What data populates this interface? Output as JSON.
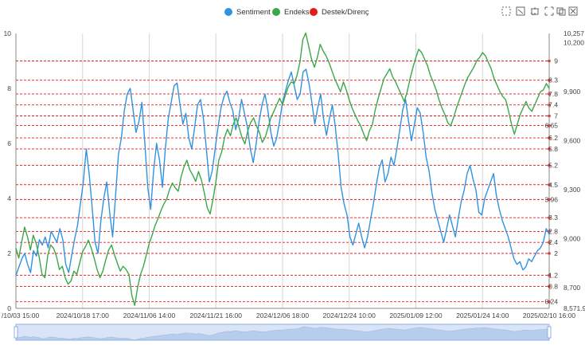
{
  "legend": [
    {
      "name": "Sentiment",
      "color": "#2f93e0"
    },
    {
      "name": "Endeks",
      "color": "#3aa84a"
    },
    {
      "name": "Destek/Direnç",
      "color": "#e41b1b"
    }
  ],
  "toolbox": [
    "zoom-select-icon",
    "zoom-reset-icon",
    "lasso-icon",
    "restore-icon",
    "save-icon",
    "fullscreen-icon"
  ],
  "chart_data": {
    "type": "line",
    "x_tick_labels": [
      "/10/03 15:00",
      "2024/10/18 17:00",
      "2024/11/06 14:00",
      "2024/11/21 16:00",
      "2024/12/06 18:00",
      "2024/12/24 10:00",
      "2025/01/09 12:00",
      "2025/01/24 14:00",
      "2025/02/10 16:00"
    ],
    "y_left": {
      "min": 0,
      "max": 10,
      "ticks": [
        "0",
        "2",
        "4",
        "6",
        "8",
        "10"
      ]
    },
    "y_right": {
      "ticks": [
        "8,571.9",
        "8,700",
        "9,000",
        "9,300",
        "9,600",
        "9,900",
        "10,200",
        "10,257"
      ],
      "range": [
        8571.9,
        10257
      ]
    },
    "support_resistance_levels": [
      0.24,
      0.8,
      1.2,
      2,
      2.4,
      2.8,
      3.3,
      3.96,
      4.5,
      5.2,
      5.8,
      6.2,
      6.65,
      7,
      7.4,
      7.8,
      8.3,
      9
    ],
    "support_resistance_labels": [
      "0.24",
      "0.8",
      "1.2",
      "2",
      "2.4",
      "2.8",
      "3.3",
      "3.96",
      "4.5",
      "5.2",
      "5.8",
      "6.2",
      "6.65",
      "7",
      "7.4",
      "7.8",
      "8.3",
      "9"
    ],
    "series": [
      {
        "name": "Sentiment",
        "axis": "left",
        "color": "#2f93e0",
        "values": [
          1.2,
          1.5,
          1.8,
          2.0,
          1.6,
          1.3,
          2.1,
          1.9,
          2.5,
          2.3,
          2.6,
          2.2,
          2.8,
          2.6,
          2.4,
          2.9,
          2.5,
          1.6,
          1.3,
          1.9,
          2.5,
          3.0,
          3.8,
          4.6,
          5.8,
          4.9,
          3.7,
          2.4,
          2.0,
          3.2,
          4.0,
          4.6,
          3.5,
          2.6,
          4.1,
          5.6,
          6.2,
          7.2,
          7.8,
          8.0,
          7.2,
          6.4,
          6.8,
          7.5,
          6.0,
          4.4,
          3.6,
          5.0,
          6.0,
          5.4,
          4.4,
          5.8,
          6.9,
          7.5,
          8.1,
          8.2,
          7.4,
          6.7,
          7.1,
          6.2,
          5.8,
          6.6,
          7.4,
          7.6,
          6.9,
          5.8,
          4.6,
          5.0,
          5.8,
          6.6,
          7.3,
          7.7,
          7.9,
          7.5,
          7.2,
          6.5,
          6.9,
          7.6,
          7.1,
          6.6,
          5.8,
          5.3,
          6.0,
          6.8,
          7.4,
          7.8,
          7.2,
          6.4,
          5.9,
          6.2,
          6.8,
          7.5,
          7.9,
          8.3,
          8.6,
          8.1,
          7.6,
          7.8,
          8.6,
          8.7,
          8.2,
          7.5,
          6.7,
          7.3,
          7.8,
          6.9,
          6.3,
          6.9,
          7.4,
          6.6,
          5.6,
          4.4,
          3.8,
          3.4,
          2.6,
          2.3,
          2.7,
          3.1,
          2.6,
          2.2,
          2.6,
          3.2,
          3.8,
          4.5,
          5.1,
          5.4,
          4.6,
          4.9,
          5.5,
          5.2,
          5.8,
          6.5,
          7.2,
          7.6,
          6.8,
          6.1,
          6.7,
          7.3,
          7.1,
          6.4,
          5.5,
          5.0,
          4.2,
          3.6,
          3.2,
          2.8,
          2.4,
          2.9,
          3.4,
          3.0,
          2.6,
          3.3,
          3.9,
          4.3,
          4.9,
          5.2,
          4.7,
          4.3,
          3.5,
          3.4,
          4.0,
          4.3,
          4.6,
          4.9,
          4.1,
          3.6,
          3.2,
          2.9,
          2.6,
          2.2,
          1.8,
          1.6,
          1.7,
          1.4,
          1.5,
          1.8,
          1.7,
          1.9,
          2.1,
          2.2,
          2.4,
          2.9,
          2.7
        ]
      },
      {
        "name": "Endeks",
        "axis": "right",
        "color": "#3aa84a",
        "values": [
          8940,
          8880,
          8980,
          9070,
          9010,
          8930,
          9020,
          8970,
          8890,
          8780,
          8760,
          8900,
          8960,
          8940,
          8890,
          8810,
          8830,
          8760,
          8720,
          8740,
          8800,
          8780,
          8850,
          8920,
          8950,
          8990,
          8940,
          8880,
          8810,
          8760,
          8800,
          8870,
          8930,
          8960,
          8900,
          8850,
          8800,
          8830,
          8810,
          8780,
          8650,
          8590,
          8700,
          8780,
          8830,
          8900,
          8970,
          9020,
          9080,
          9120,
          9170,
          9210,
          9240,
          9300,
          9340,
          9310,
          9290,
          9380,
          9440,
          9480,
          9420,
          9390,
          9350,
          9410,
          9360,
          9280,
          9190,
          9150,
          9240,
          9350,
          9480,
          9530,
          9620,
          9670,
          9630,
          9700,
          9740,
          9680,
          9620,
          9580,
          9660,
          9710,
          9740,
          9690,
          9650,
          9590,
          9620,
          9680,
          9740,
          9780,
          9820,
          9860,
          9820,
          9880,
          9930,
          9960,
          9950,
          10000,
          10080,
          10220,
          10260,
          10180,
          10100,
          10050,
          10110,
          10190,
          10150,
          10120,
          10080,
          10030,
          9980,
          9940,
          9900,
          9960,
          9910,
          9850,
          9800,
          9760,
          9720,
          9690,
          9640,
          9600,
          9660,
          9700,
          9790,
          9860,
          9920,
          9980,
          10010,
          10040,
          9990,
          9960,
          9920,
          9880,
          9840,
          9900,
          9980,
          10050,
          10110,
          10160,
          10140,
          10100,
          10060,
          10000,
          9960,
          9910,
          9850,
          9800,
          9760,
          9710,
          9690,
          9740,
          9800,
          9850,
          9900,
          9950,
          9990,
          10020,
          10050,
          10090,
          10110,
          10140,
          10120,
          10080,
          10040,
          9980,
          9940,
          9900,
          9870,
          9850,
          9780,
          9700,
          9640,
          9700,
          9760,
          9800,
          9840,
          9800,
          9780,
          9820,
          9860,
          9900,
          9910,
          9950,
          9920
        ]
      }
    ],
    "grid": true
  }
}
